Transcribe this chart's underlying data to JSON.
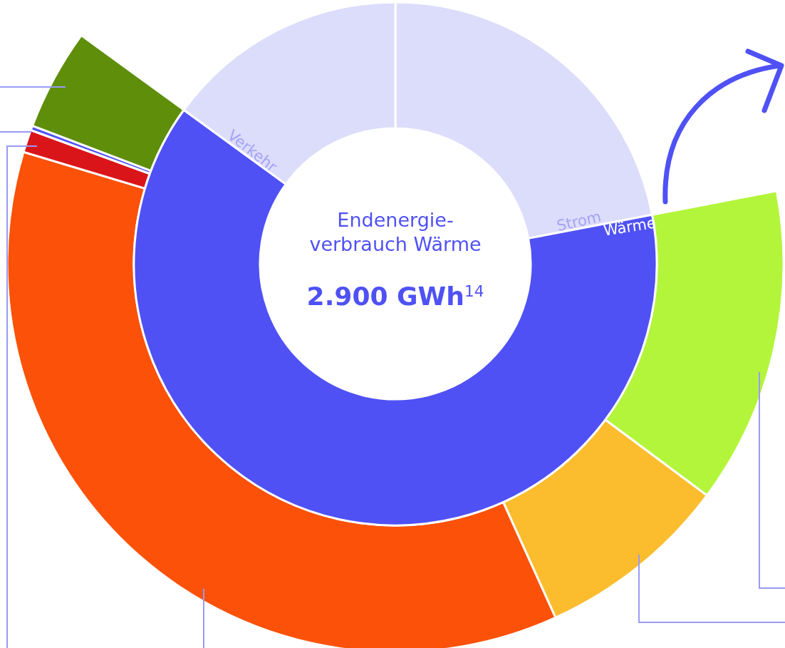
{
  "chart_data": [
    {
      "type": "donut",
      "title": "Endenergie-\nverbrauch Wärme",
      "subtitle": "2.900 GWh$^{14}$",
      "categories": [
        "Strom",
        "Wärme",
        "Verkehr"
      ],
      "values": [
        22,
        63,
        15
      ],
      "colors": [
        "#dcdcfb",
        "#4f51f5",
        "#dcdcfb"
      ]
    },
    {
      "type": "donut",
      "categories": [
        null,
        null,
        null,
        null,
        null,
        null
      ],
      "values": [
        20.9,
        12.8,
        57.8,
        1.5,
        0.3,
        6.7
      ],
      "colors": [
        "#b3f53b",
        "#fbbd2e",
        "#fc5108",
        "#d9151a",
        "#4f51f5",
        "#5f8e0a"
      ]
    }
  ]
}
